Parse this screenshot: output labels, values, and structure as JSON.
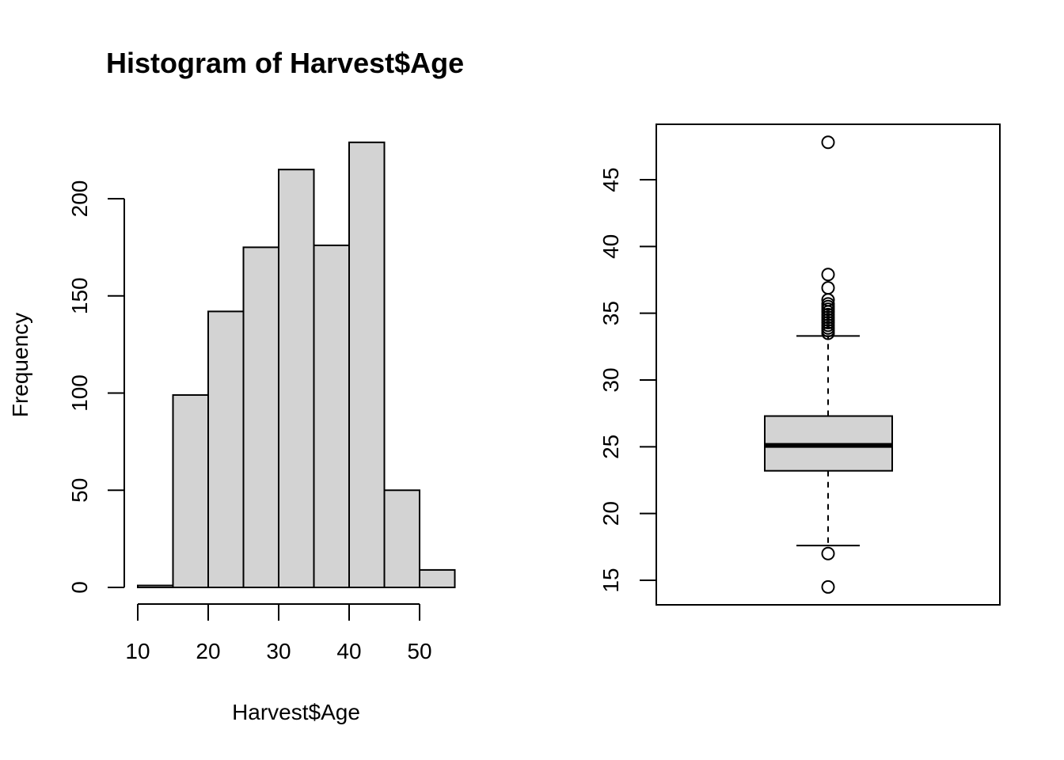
{
  "chart_data": [
    {
      "type": "bar",
      "subtype": "histogram",
      "title": "Histogram of Harvest$Age",
      "xlabel": "Harvest$Age",
      "ylabel": "Frequency",
      "bins": [
        {
          "from": 10,
          "to": 15,
          "count": 1
        },
        {
          "from": 15,
          "to": 20,
          "count": 99
        },
        {
          "from": 20,
          "to": 25,
          "count": 142
        },
        {
          "from": 25,
          "to": 30,
          "count": 175
        },
        {
          "from": 30,
          "to": 35,
          "count": 215
        },
        {
          "from": 35,
          "to": 40,
          "count": 176
        },
        {
          "from": 40,
          "to": 45,
          "count": 229
        },
        {
          "from": 45,
          "to": 50,
          "count": 50
        },
        {
          "from": 50,
          "to": 55,
          "count": 9
        }
      ],
      "xticks": [
        "10",
        "20",
        "30",
        "40",
        "50"
      ],
      "yticks": [
        "0",
        "50",
        "100",
        "150",
        "200"
      ],
      "bar_color": "#d3d3d3",
      "grid": false
    },
    {
      "type": "box",
      "yticks": [
        "15",
        "20",
        "25",
        "30",
        "35",
        "40",
        "45"
      ],
      "ylim": [
        13.5,
        49.5
      ],
      "lower_whisker": 17.6,
      "q1": 23.2,
      "median": 25.1,
      "q3": 27.3,
      "upper_whisker": 33.3,
      "outliers": [
        47.8,
        37.9,
        36.9,
        36.0,
        35.7,
        35.5,
        35.3,
        35.1,
        34.9,
        34.7,
        34.5,
        34.3,
        34.1,
        33.9,
        33.7,
        33.5,
        17.0,
        14.5
      ],
      "box_color": "#d3d3d3",
      "grid": false
    }
  ]
}
